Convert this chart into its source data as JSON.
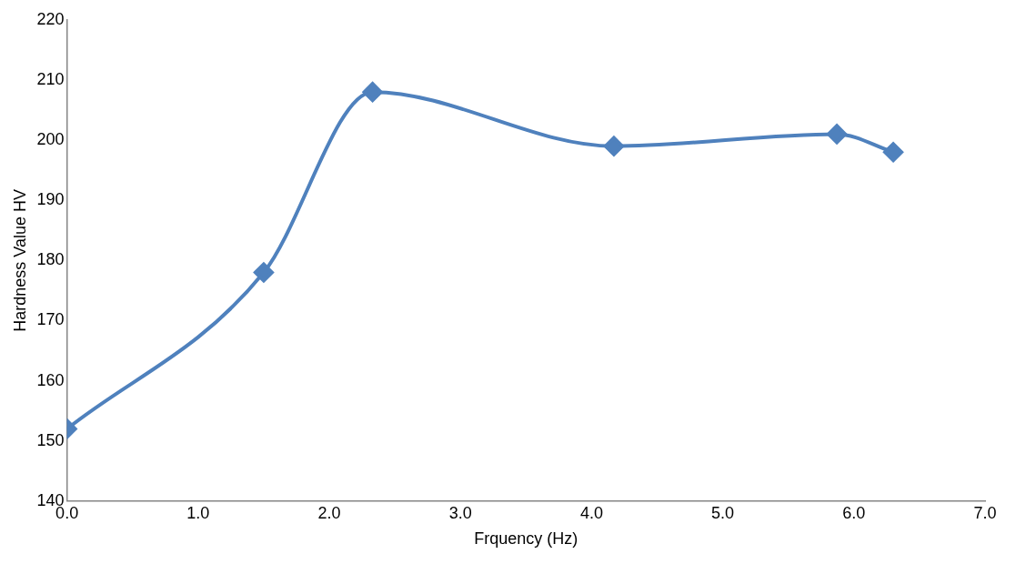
{
  "chart_data": {
    "type": "line",
    "xlabel": "Frquency (Hz)",
    "ylabel": "Hardness Value HV",
    "x": [
      0,
      1.5,
      2.33,
      4.17,
      5.87,
      6.3
    ],
    "series": [
      {
        "color": "#4f81bd",
        "values": [
          152,
          178,
          208,
          199,
          201,
          198
        ]
      }
    ],
    "xlim": [
      0,
      7
    ],
    "xticks": [
      {
        "value": 0,
        "label": "0.0"
      },
      {
        "value": 1,
        "label": "1.0"
      },
      {
        "value": 2,
        "label": "2.0"
      },
      {
        "value": 3,
        "label": "3.0"
      },
      {
        "value": 4,
        "label": "4.0"
      },
      {
        "value": 5,
        "label": "5.0"
      },
      {
        "value": 6,
        "label": "6.0"
      },
      {
        "value": 7,
        "label": "7.0"
      }
    ],
    "ylim": [
      140,
      220
    ],
    "yticks": [
      140,
      150,
      160,
      170,
      180,
      190,
      200,
      210,
      220
    ],
    "grid": false,
    "legend": false,
    "marker": "diamond",
    "line_style": "solid"
  }
}
